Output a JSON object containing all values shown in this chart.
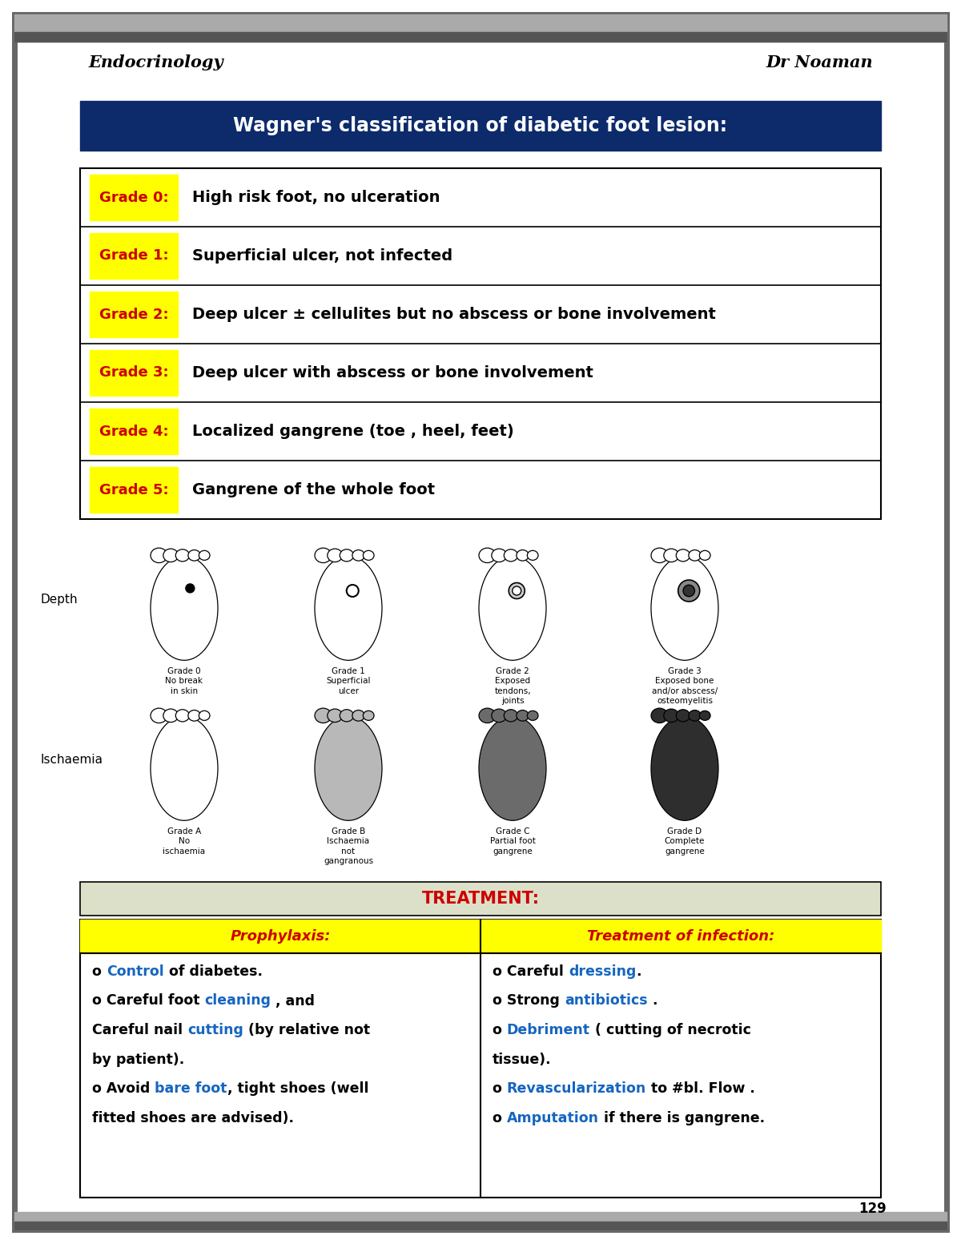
{
  "title": "Wagner's classification of diabetic foot lesion:",
  "header_bg": "#0d2b6b",
  "header_text_color": "#ffffff",
  "endocrinology_text": "Endocrinology",
  "dr_text": "Dr Noaman",
  "page_number": "129",
  "grades": [
    {
      "label": "Grade 0",
      "desc": "High risk foot, no ulceration"
    },
    {
      "label": "Grade 1",
      "desc": "Superficial ulcer, not infected"
    },
    {
      "label": "Grade 2",
      "desc": "Deep ulcer ± cellulites but no abscess or bone involvement"
    },
    {
      "label": "Grade 3",
      "desc": "Deep ulcer with abscess or bone involvement"
    },
    {
      "label": "Grade 4",
      "desc": "Localized gangrene (toe , heel, feet)"
    },
    {
      "label": "Grade 5",
      "desc": "Gangrene of the whole foot"
    }
  ],
  "grade_label_color": "#cc0000",
  "grade_label_bg": "#ffff00",
  "depth_label": "Depth",
  "ischaemia_label": "Ischaemia",
  "depth_foot_labels": [
    "Grade 0\nNo break\nin skin",
    "Grade 1\nSuperficial\nulcer",
    "Grade 2\nExposed\ntendons,\njoints",
    "Grade 3\nExposed bone\nand/or abscess/\nosteomyelitis"
  ],
  "isch_foot_labels": [
    "Grade A\nNo\nischaemia",
    "Grade B\nIschaemia\nnot\ngangranous",
    "Grade C\nPartial foot\ngangrene",
    "Grade D\nComplete\ngangrene"
  ],
  "isch_shadings": [
    0.0,
    0.28,
    0.58,
    0.82
  ],
  "treatment_header": "TREATMENT:",
  "treatment_header_color": "#cc0000",
  "treatment_header_bg": "#dde0c8",
  "prophylaxis_header": "Prophylaxis:",
  "infection_header": "Treatment of infection:",
  "table_header_bg": "#ffff00",
  "col_header_color": "#cc0000",
  "prophylaxis_lines": [
    [
      [
        "o ",
        "black"
      ],
      [
        "Control",
        "#1565c0"
      ],
      [
        " of diabetes.",
        "black"
      ]
    ],
    [
      [
        "o Careful foot ",
        "black"
      ],
      [
        "cleaning",
        "#1565c0"
      ],
      [
        " , and",
        "black"
      ]
    ],
    [
      [
        "Careful nail ",
        "black"
      ],
      [
        "cutting",
        "#1565c0"
      ],
      [
        " (by relative not",
        "black"
      ]
    ],
    [
      [
        "by patient).",
        "black"
      ]
    ],
    [
      [
        "o Avoid ",
        "black"
      ],
      [
        "bare foot",
        "#1565c0"
      ],
      [
        ", tight shoes (well",
        "black"
      ]
    ],
    [
      [
        "fitted shoes are advised).",
        "black"
      ]
    ]
  ],
  "infection_lines": [
    [
      [
        "o Careful ",
        "black"
      ],
      [
        "dressing",
        "#1565c0"
      ],
      [
        ".",
        "black"
      ]
    ],
    [
      [
        "o Strong ",
        "black"
      ],
      [
        "antibiotics",
        "#1565c0"
      ],
      [
        " .",
        "black"
      ]
    ],
    [
      [
        "o ",
        "black"
      ],
      [
        "Debriment",
        "#1565c0"
      ],
      [
        " ( cutting of necrotic",
        "black"
      ]
    ],
    [
      [
        "tissue).",
        "black"
      ]
    ],
    [
      [
        "o ",
        "black"
      ],
      [
        "Revascularization",
        "#1565c0"
      ],
      [
        " to #bl. Flow .",
        "black"
      ]
    ],
    [
      [
        "o ",
        "black"
      ],
      [
        "Amputation",
        "#1565c0"
      ],
      [
        " if there is gangrene.",
        "black"
      ]
    ]
  ]
}
